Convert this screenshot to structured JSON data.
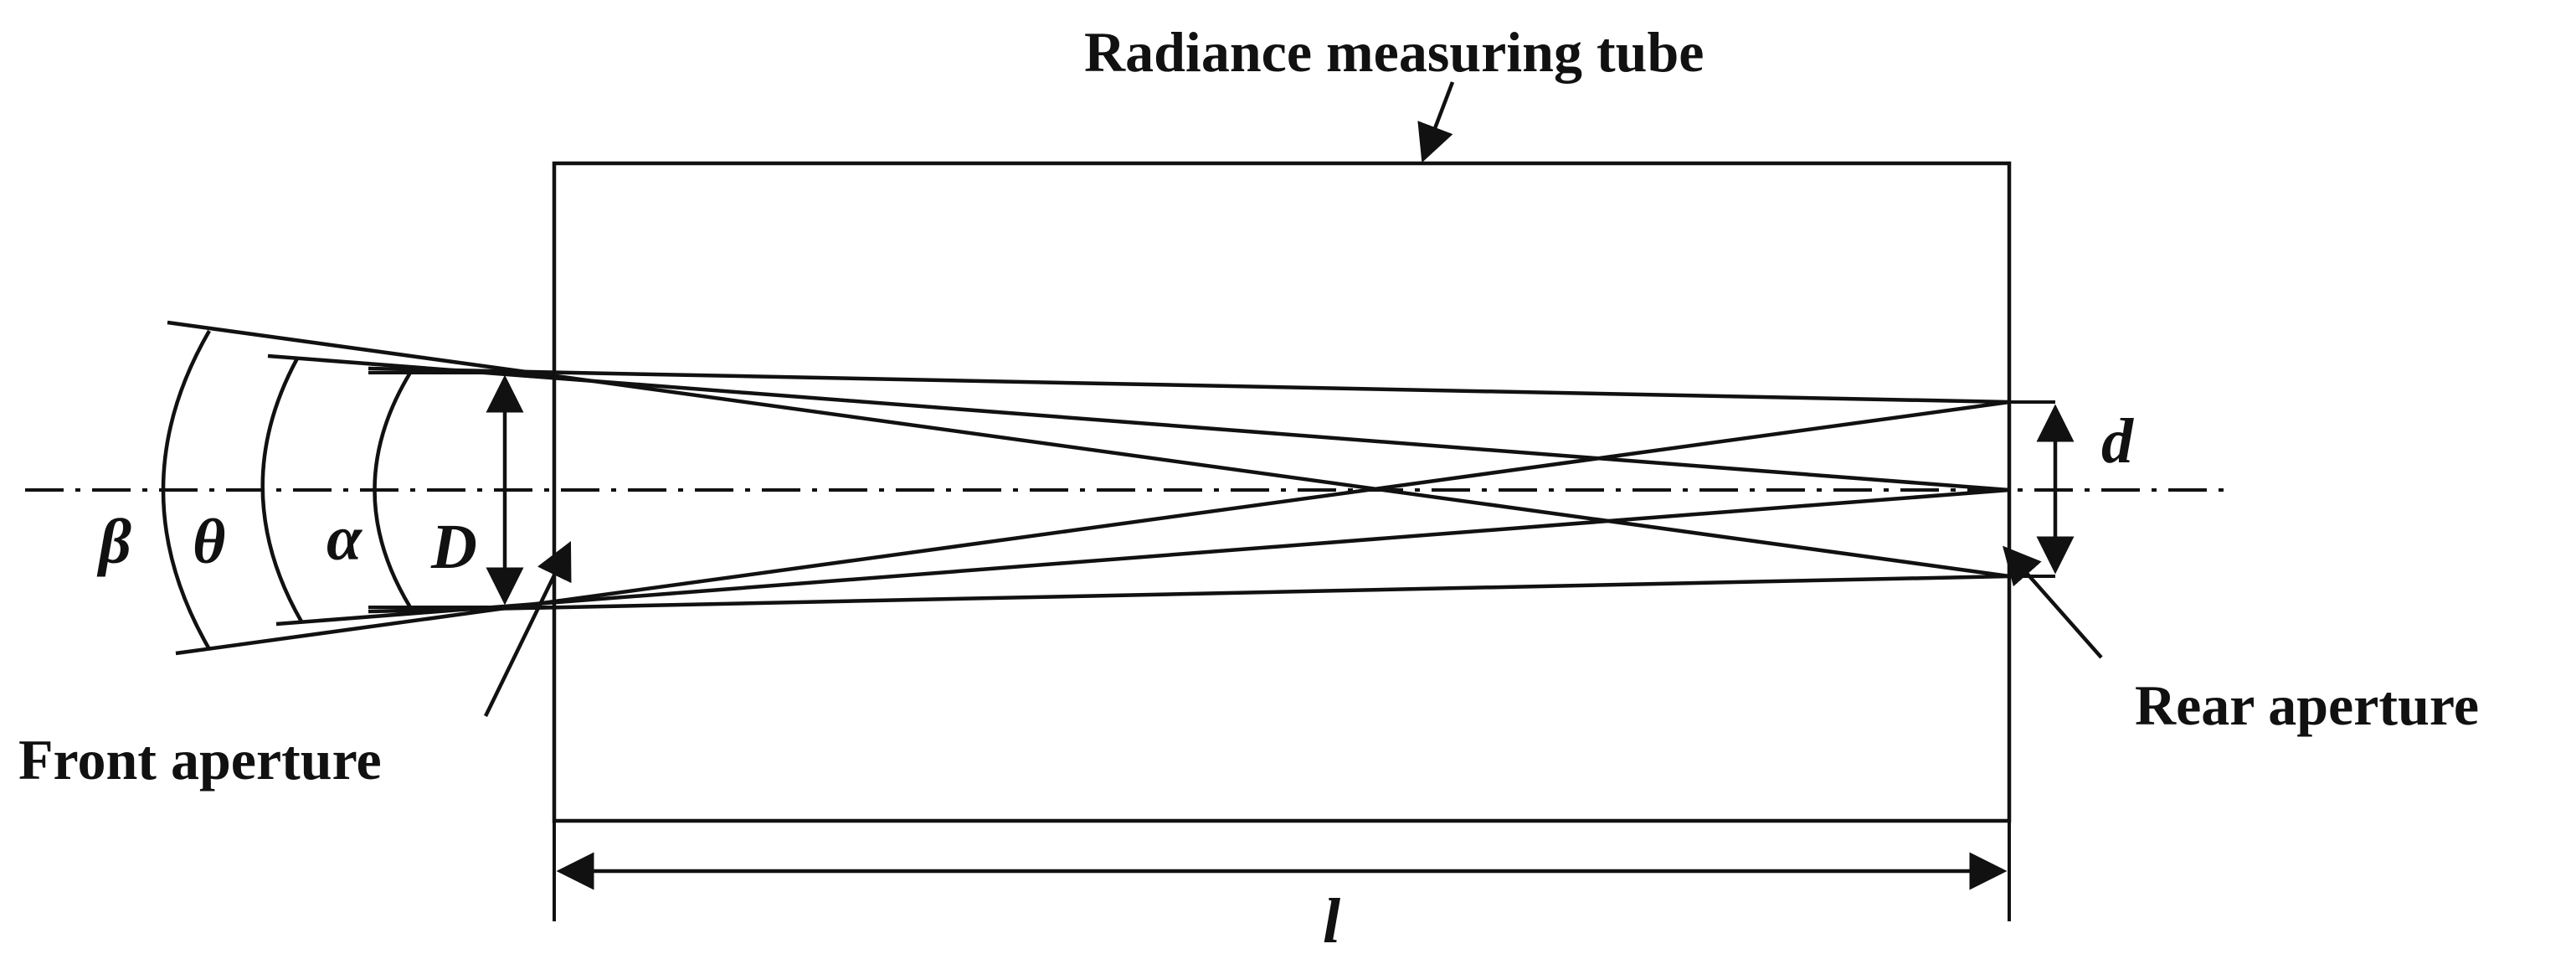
{
  "labels": {
    "tube": "Radiance measuring tube",
    "front_aperture": "Front aperture",
    "rear_aperture": "Rear aperture"
  },
  "symbols": {
    "beta": "β",
    "theta": "θ",
    "alpha": "α",
    "front_diameter": "D",
    "rear_diameter": "d",
    "length": "l"
  },
  "colors": {
    "stroke": "#111111",
    "background": "#ffffff"
  }
}
